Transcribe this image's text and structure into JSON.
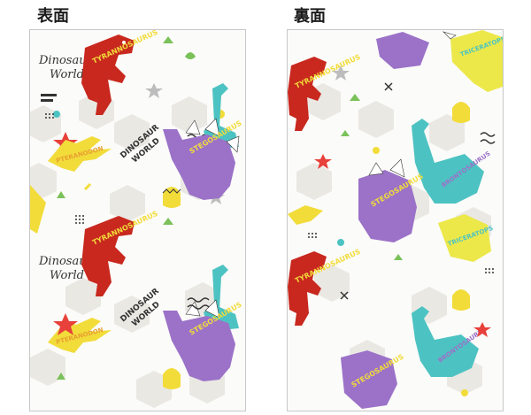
{
  "labels": {
    "front": "表面",
    "back": "裏面"
  },
  "pattern": {
    "logo_line1": "Dinosaur",
    "logo_line2": "World",
    "sign_line1": "DINOSAUR",
    "sign_line2": "WORLD",
    "trex_text": "TYRANNOSAURUS",
    "stego_text": "STEGOSAURUS",
    "ptera_text": "PTERANODON",
    "bronto_text": "BRONTOSAURUS",
    "trike_text": "TRICERATOPS"
  },
  "colors": {
    "trex": "#c8281e",
    "stego": "#9b72c8",
    "ptera": "#f2dc3a",
    "bronto": "#4cc3c2",
    "trike": "#ece84a",
    "hex": "#e8e6e0",
    "leaf_green": "#7ac15a",
    "star_red": "#e8403a",
    "star_gray": "#bdbdbd"
  }
}
